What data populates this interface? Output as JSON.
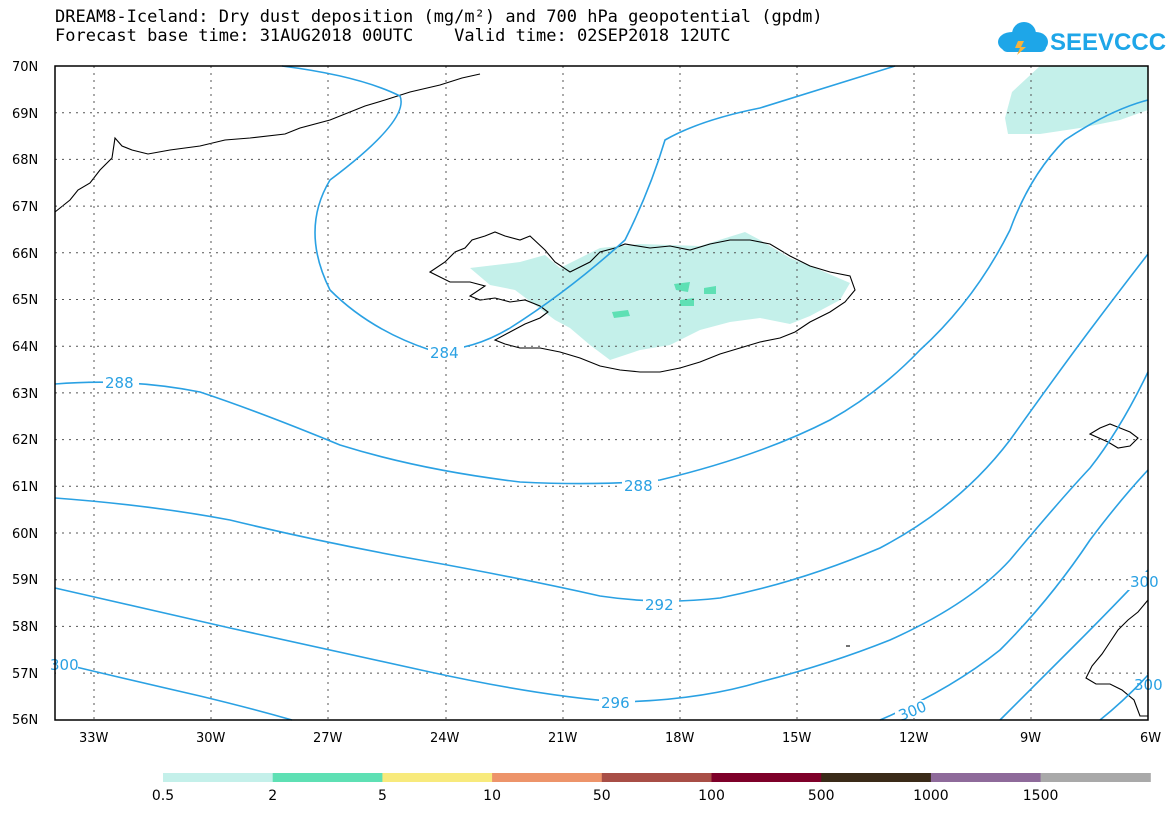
{
  "header": {
    "title_line1": "DREAM8-Iceland: Dry dust deposition (mg/m²) and 700 hPa geopotential (gpdm)",
    "title_line2": "Forecast base time: 31AUG2018 00UTC    Valid time: 02SEP2018 12UTC",
    "logo_text": "SEEVCCC"
  },
  "map": {
    "lat_labels": [
      "70N",
      "69N",
      "68N",
      "67N",
      "66N",
      "65N",
      "64N",
      "63N",
      "62N",
      "61N",
      "60N",
      "59N",
      "58N",
      "57N",
      "56N"
    ],
    "lon_labels": [
      "33W",
      "30W",
      "27W",
      "24W",
      "21W",
      "18W",
      "15W",
      "12W",
      "9W",
      "6W"
    ],
    "contour_labels": [
      "284",
      "288",
      "288",
      "292",
      "296",
      "300",
      "300",
      "300",
      "300"
    ],
    "contour_color": "#2aa1e3"
  },
  "legend": {
    "labels": [
      "0.5",
      "2",
      "5",
      "10",
      "50",
      "100",
      "500",
      "1000",
      "1500"
    ],
    "colors": [
      "#c4f0ea",
      "#5ee0b4",
      "#f8ea7c",
      "#ed946a",
      "#a84e46",
      "#7e0029",
      "#3a2a18",
      "#8e6a9a",
      "#a9a9a9"
    ]
  }
}
